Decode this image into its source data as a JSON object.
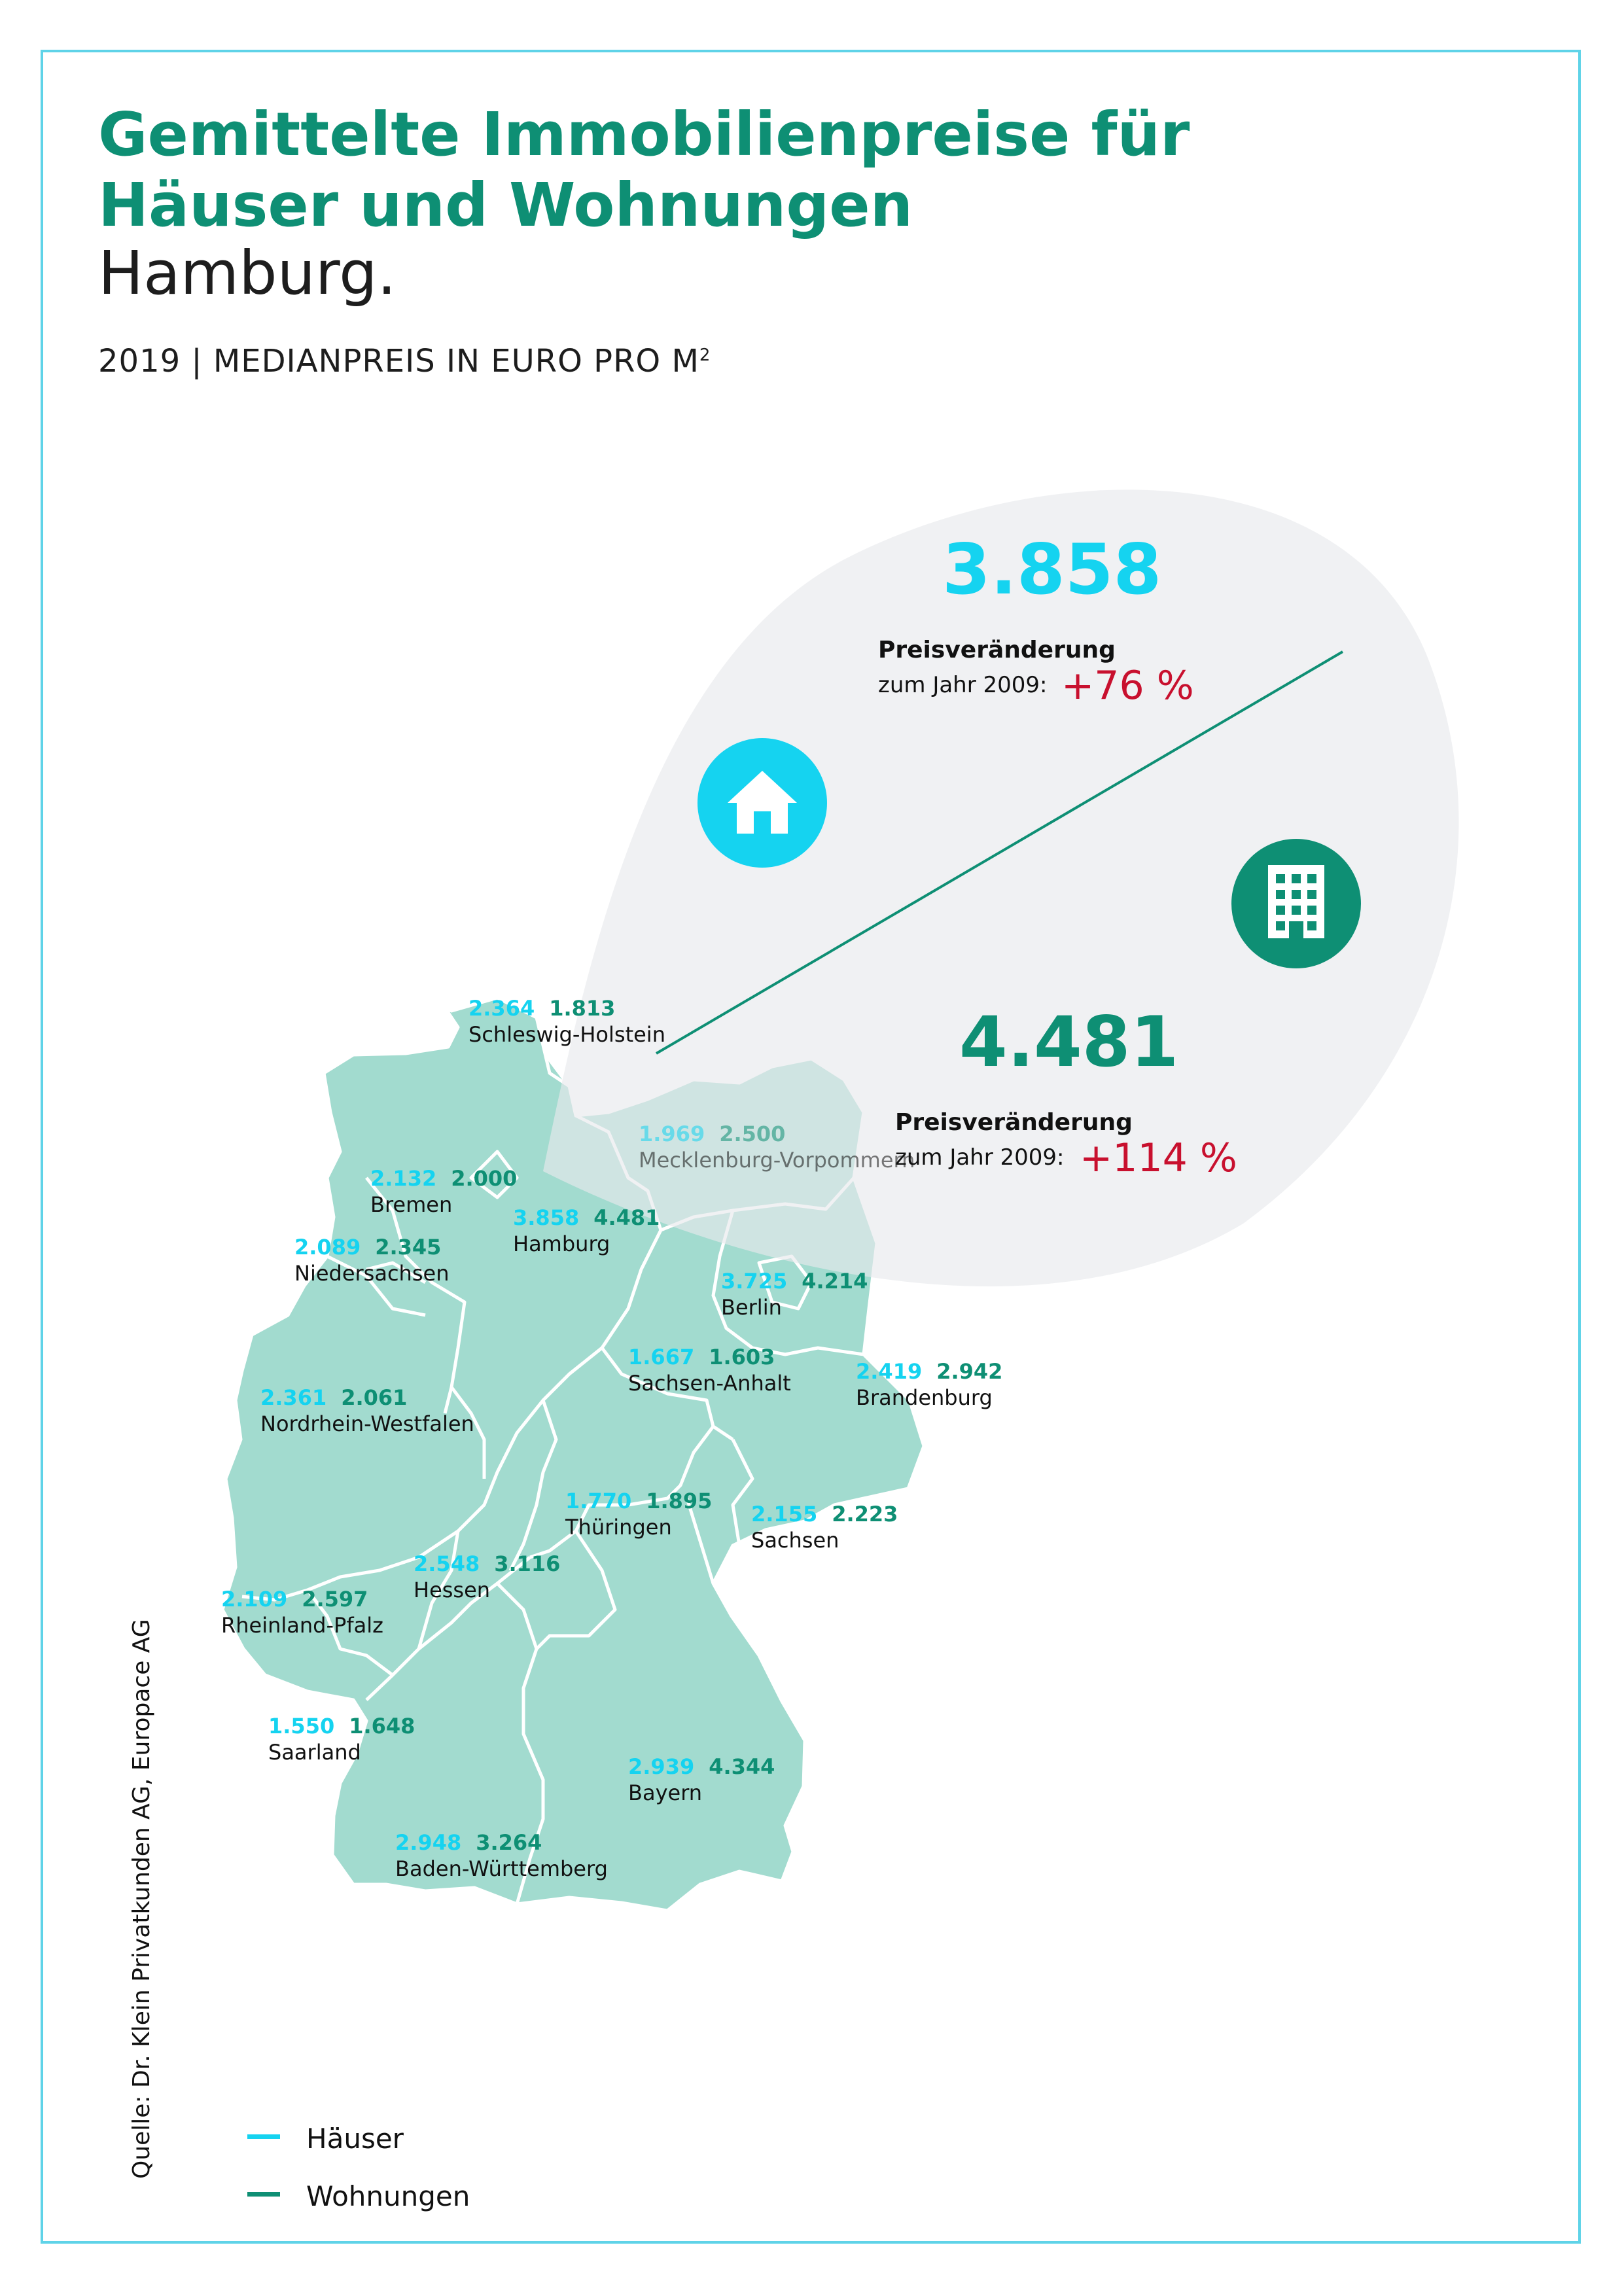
{
  "title": {
    "line1": "Gemittelte Immobilienpreise für",
    "line2": "Häuser und Wohnungen",
    "city": "Hamburg."
  },
  "subtitle": {
    "text": "2019 | MEDIANPREIS IN EURO PRO M",
    "sup": "2"
  },
  "highlight": {
    "houses": {
      "price": "3.858",
      "change_label": "Preisveränderung",
      "change_since": "zum Jahr 2009:",
      "change": "+76 %"
    },
    "apartments": {
      "price": "4.481",
      "change_label": "Preisveränderung",
      "change_since": "zum Jahr 2009:",
      "change": "+114 %"
    }
  },
  "icons": {
    "houses": "house-icon",
    "apartments": "building-icon"
  },
  "colors": {
    "title": "#0e8f74",
    "houses": "#15d3f0",
    "apartments": "#0e8f74",
    "change": "#c8102e",
    "map_fill": "#a2dbcf",
    "bubble": "#eef0f2",
    "frame": "#5fd3e8"
  },
  "states": [
    {
      "name": "Schleswig-Holstein",
      "houses": "2.364",
      "apartments": "1.813"
    },
    {
      "name": "Mecklenburg-Vorpommern",
      "houses": "1.969",
      "apartments": "2.500"
    },
    {
      "name": "Bremen",
      "houses": "2.132",
      "apartments": "2.000"
    },
    {
      "name": "Hamburg",
      "houses": "3.858",
      "apartments": "4.481"
    },
    {
      "name": "Niedersachsen",
      "houses": "2.089",
      "apartments": "2.345"
    },
    {
      "name": "Berlin",
      "houses": "3.725",
      "apartments": "4.214"
    },
    {
      "name": "Sachsen-Anhalt",
      "houses": "1.667",
      "apartments": "1.603"
    },
    {
      "name": "Brandenburg",
      "houses": "2.419",
      "apartments": "2.942"
    },
    {
      "name": "Nordrhein-Westfalen",
      "houses": "2.361",
      "apartments": "2.061"
    },
    {
      "name": "Thüringen",
      "houses": "1.770",
      "apartments": "1.895"
    },
    {
      "name": "Sachsen",
      "houses": "2.155",
      "apartments": "2.223"
    },
    {
      "name": "Hessen",
      "houses": "2.548",
      "apartments": "3.116"
    },
    {
      "name": "Rheinland-Pfalz",
      "houses": "2.109",
      "apartments": "2.597"
    },
    {
      "name": "Saarland",
      "houses": "1.550",
      "apartments": "1.648"
    },
    {
      "name": "Bayern",
      "houses": "2.939",
      "apartments": "4.344"
    },
    {
      "name": "Baden-Württemberg",
      "houses": "2.948",
      "apartments": "3.264"
    }
  ],
  "legend": [
    {
      "label": "Häuser"
    },
    {
      "label": "Wohnungen"
    }
  ],
  "source": "Quelle: Dr. Klein Privatkunden AG, Europace AG"
}
